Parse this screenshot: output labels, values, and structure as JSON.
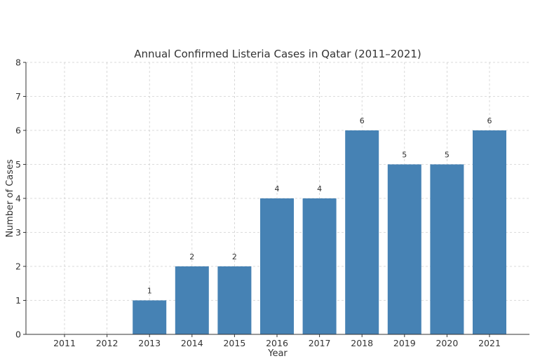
{
  "chart_data": {
    "type": "bar",
    "title": "Annual Confirmed Listeria Cases in Qatar (2011–2021)",
    "xlabel": "Year",
    "ylabel": "Number of Cases",
    "categories": [
      "2011",
      "2012",
      "2013",
      "2014",
      "2015",
      "2016",
      "2017",
      "2018",
      "2019",
      "2020",
      "2021"
    ],
    "values": [
      0,
      0,
      1,
      2,
      2,
      4,
      4,
      6,
      5,
      5,
      6
    ],
    "data_labels": [
      "",
      "",
      "1",
      "2",
      "2",
      "4",
      "4",
      "6",
      "5",
      "5",
      "6"
    ],
    "ylim": [
      0,
      8
    ],
    "yticks": [
      "0",
      "1",
      "2",
      "3",
      "4",
      "5",
      "6",
      "7",
      "8"
    ],
    "grid": true,
    "bar_color": "#4682b4",
    "legend": "none"
  }
}
